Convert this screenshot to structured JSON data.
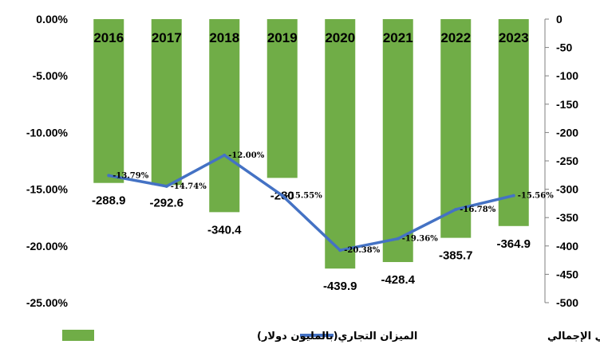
{
  "chart_data": {
    "type": "bar",
    "categories": [
      "2016",
      "2017",
      "2018",
      "2019",
      "2020",
      "2021",
      "2022",
      "2023"
    ],
    "series": [
      {
        "name": "الميزان التجاري(بالمليون دولار)",
        "type": "bar",
        "axis": "right",
        "values": [
          -288.9,
          -292.6,
          -340.4,
          -280,
          -439.9,
          -428.4,
          -385.7,
          -364.9
        ],
        "labels": [
          "-288.9",
          "-292.6",
          "-340.4",
          "-280",
          "-439.9",
          "-428.4",
          "-385.7",
          "-364.9"
        ],
        "color": "#70ad47"
      },
      {
        "name": "الميزان التجاري % من الناتج المحلي الإجمالي",
        "type": "line",
        "axis": "left",
        "values": [
          -13.79,
          -14.74,
          -12.0,
          -15.55,
          -20.38,
          -19.36,
          -16.78,
          -15.56
        ],
        "labels": [
          "-13.79%",
          "-14.74%",
          "-12.00%",
          "-15.55%",
          "-20.38%",
          "-19.36%",
          "-16.78%",
          "-15.56%"
        ],
        "color": "#4472c4"
      }
    ],
    "y_left": {
      "ylim": [
        -25,
        0
      ],
      "ticks": [
        0,
        -5,
        -10,
        -15,
        -20,
        -25
      ],
      "tick_labels": [
        "0.00%",
        "-5.00%",
        "-10.00%",
        "-15.00%",
        "-20.00%",
        "-25.00%"
      ]
    },
    "y_right": {
      "ylim": [
        -500,
        0
      ],
      "ticks": [
        0,
        -50,
        -100,
        -150,
        -200,
        -250,
        -300,
        -350,
        -400,
        -450,
        -500
      ],
      "tick_labels": [
        "0",
        "-50",
        "-100",
        "-150",
        "-200",
        "-250",
        "-300",
        "-350",
        "-400",
        "-450",
        "-500"
      ]
    },
    "grid": false,
    "legend": "bottom",
    "legend_entries": [
      {
        "label": "الميزان التجاري % من الناتج المحلي الإجمالي",
        "kind": "line",
        "color": "#4472c4"
      },
      {
        "label": "الميزان التجاري(بالمليون دولار)",
        "kind": "bar",
        "color": "#70ad47"
      }
    ]
  }
}
